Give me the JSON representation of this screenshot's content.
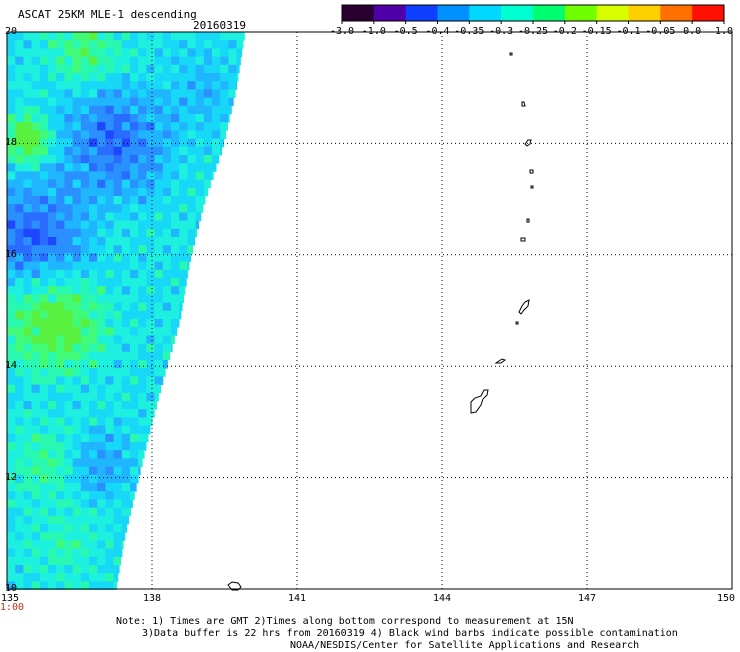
{
  "header": {
    "title": "ASCAT 25KM MLE-1 descending",
    "date": "20160319"
  },
  "colorbar": {
    "labels": [
      "-3.0",
      "-1.0",
      "-0.5",
      "-0.4",
      "-0.35",
      "-0.3",
      "-0.25",
      "-0.2",
      "-0.15",
      "-0.1",
      "-0.05",
      "0.0",
      "1.0"
    ],
    "colors": [
      "#2a0030",
      "#5000a8",
      "#1040ff",
      "#0090ff",
      "#00d8ff",
      "#00ffd0",
      "#00ff70",
      "#70ff00",
      "#d8ff00",
      "#ffd000",
      "#ff7000",
      "#ff1000"
    ]
  },
  "map": {
    "lat_range": [
      10,
      20
    ],
    "lon_range": [
      135,
      150
    ],
    "lat_labels": [
      "20",
      "18",
      "16",
      "14",
      "12",
      "10"
    ],
    "lon_labels": [
      "135",
      "138",
      "141",
      "144",
      "147",
      "150"
    ],
    "start_time": "1:00"
  },
  "notes": {
    "line1": "Note: 1) Times are GMT 2)Times along bottom correspond to measurement at 15N",
    "line2": "3)Data buffer is 22 hrs from 20160319 4) Black wind barbs indicate possible contamination",
    "line3": "NOAA/NESDIS/Center for Satellite Applications and Research"
  }
}
